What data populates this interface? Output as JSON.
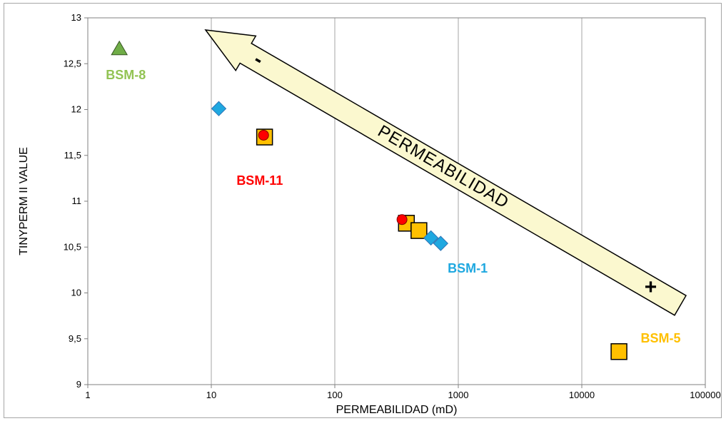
{
  "chart_data": {
    "type": "scatter",
    "xlabel": "PERMEABILIDAD  (mD)",
    "ylabel": "TINYPERM II VALUE",
    "xscale": "log",
    "xlim": [
      1,
      100000
    ],
    "ylim": [
      9,
      13
    ],
    "x_ticks": [
      "1",
      "10",
      "100",
      "1000",
      "10000",
      "100000"
    ],
    "y_ticks": [
      "9",
      "9,5",
      "10",
      "10,5",
      "11",
      "11,5",
      "12",
      "12,5",
      "13"
    ],
    "grid": "vertical",
    "series": [
      {
        "name": "BSM-8",
        "marker": "triangle",
        "color": "#70ad47",
        "points": [
          {
            "x": 1.8,
            "y": 12.66
          }
        ]
      },
      {
        "name": "BSM-1",
        "marker": "diamond",
        "color": "#1fa8e0",
        "points": [
          {
            "x": 11.5,
            "y": 12.01
          },
          {
            "x": 600,
            "y": 10.6
          },
          {
            "x": 720,
            "y": 10.54
          }
        ]
      },
      {
        "name": "BSM-5",
        "marker": "square",
        "color": "#ffc000",
        "points": [
          {
            "x": 27,
            "y": 11.7
          },
          {
            "x": 380,
            "y": 10.76
          },
          {
            "x": 480,
            "y": 10.68
          },
          {
            "x": 20000,
            "y": 9.36
          }
        ]
      },
      {
        "name": "BSM-11",
        "marker": "circle",
        "color": "#ff0000",
        "points": [
          {
            "x": 26.5,
            "y": 11.72
          },
          {
            "x": 350,
            "y": 10.8
          }
        ]
      }
    ],
    "annotations": [
      {
        "text": "BSM-8",
        "color": "#92c353",
        "x": 1.4,
        "y": 12.33
      },
      {
        "text": "BSM-11",
        "color": "#ff0000",
        "x": 16,
        "y": 11.18
      },
      {
        "text": "BSM-1",
        "color": "#1fa8e0",
        "x": 820,
        "y": 10.22
      },
      {
        "text": "BSM-5",
        "color": "#ffc000",
        "x": 30000,
        "y": 9.46
      }
    ],
    "arrow": {
      "label": "PERMEABILIDAD",
      "minus_sign": "-",
      "plus_sign": "+",
      "fill": "#fbf8cf"
    }
  }
}
